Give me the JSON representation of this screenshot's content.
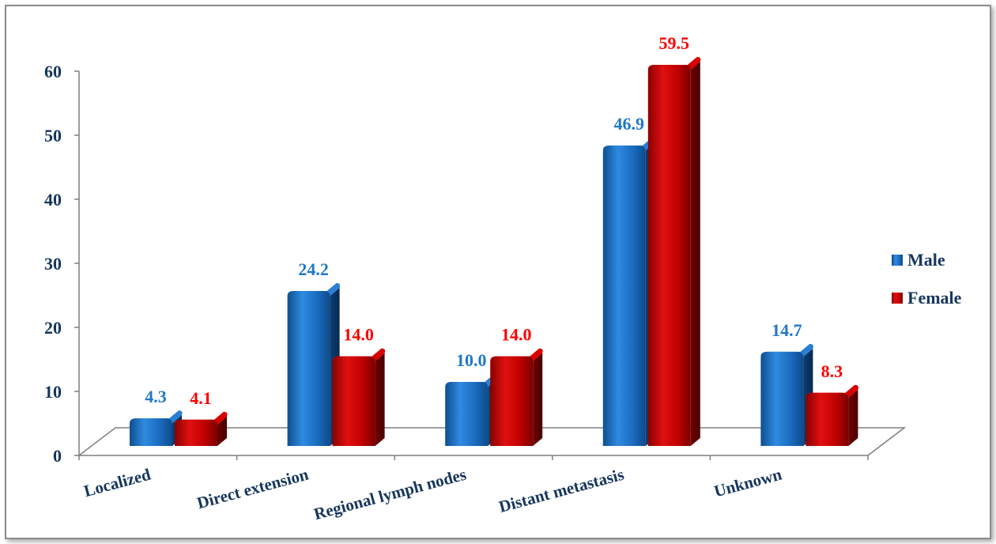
{
  "chart_data": {
    "type": "bar",
    "categories": [
      "Localized",
      "Direct extension",
      "Regional lymph nodes",
      "Distant metastasis",
      "Unknown"
    ],
    "series": [
      {
        "name": "Male",
        "values": [
          4.3,
          24.2,
          10.0,
          46.9,
          14.7
        ],
        "color": "#1f6fbf",
        "label_color": "#1f78c8"
      },
      {
        "name": "Female",
        "values": [
          4.1,
          14.0,
          14.0,
          59.5,
          8.3
        ],
        "color": "#c00000",
        "label_color": "#ff0000"
      }
    ],
    "value_labels": {
      "Male": [
        "4.3",
        "24.2",
        "10.0",
        "46.9",
        "14.7"
      ],
      "Female": [
        "4.1",
        "14.0",
        "14.0",
        "59.5",
        "8.3"
      ]
    },
    "y_ticks": [
      "0",
      "10",
      "20",
      "30",
      "40",
      "50",
      "60"
    ],
    "ylim": [
      0,
      60
    ],
    "title": "",
    "xlabel": "",
    "ylabel": "",
    "legend_position": "right",
    "grid": false
  }
}
